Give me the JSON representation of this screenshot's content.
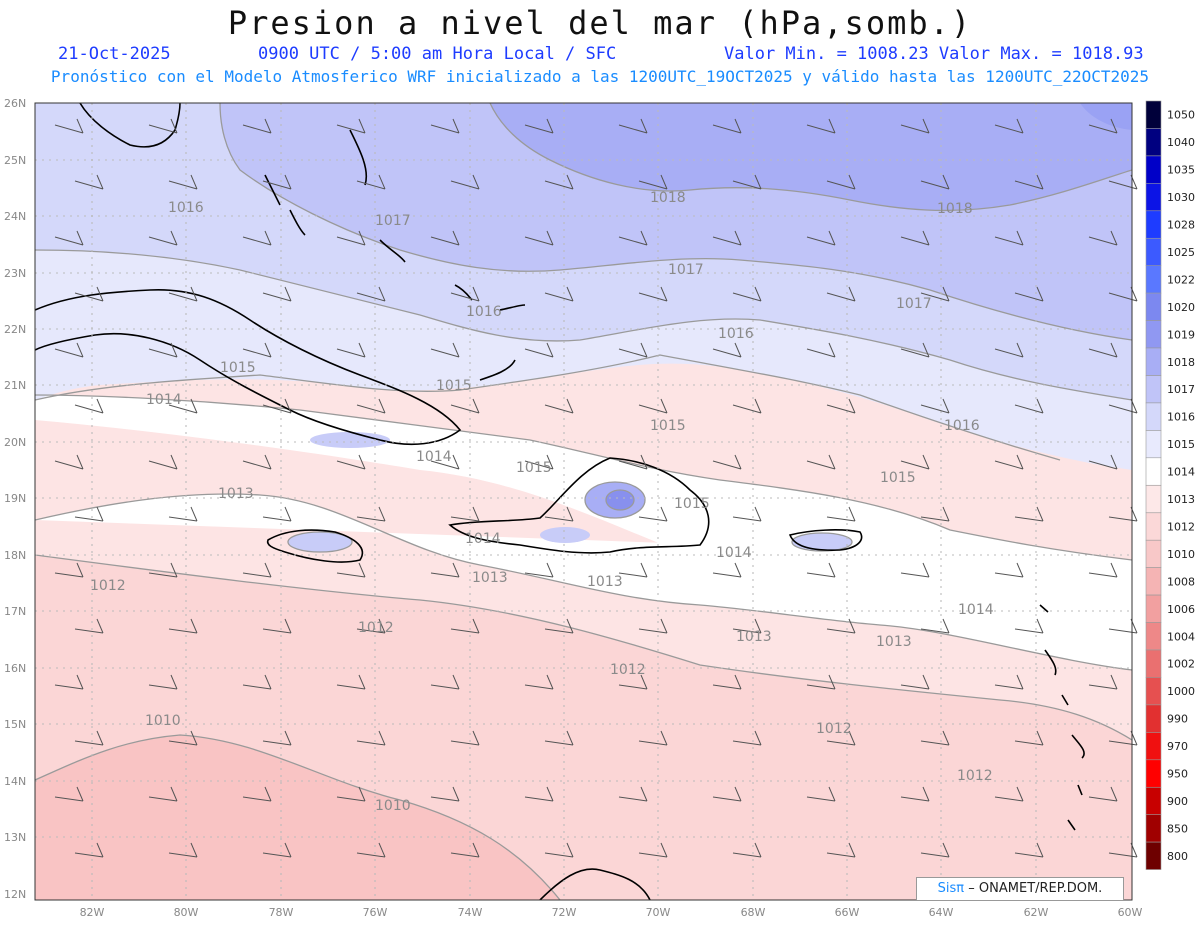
{
  "header": {
    "title": "Presion a nivel del mar (hPa,somb.)",
    "date": "21-Oct-2025",
    "time": "0900 UTC / 5:00 am Hora Local / SFC",
    "minmax": "Valor Min. = 1008.23  Valor Max. = 1018.93",
    "model": "Pronóstico con el Modelo Atmosferico WRF inicializado a las 1200UTC_19OCT2025 y válido hasta las  1200UTC_22OCT2025"
  },
  "credit": {
    "brand": "Sisπ",
    "rest": "– ONAMET/REP.DOM."
  },
  "map": {
    "lat_ticks": [
      "26N",
      "25N",
      "24N",
      "23N",
      "22N",
      "21N",
      "20N",
      "19N",
      "18N",
      "17N",
      "16N",
      "15N",
      "14N",
      "13N",
      "12N"
    ],
    "lon_ticks": [
      "82W",
      "80W",
      "78W",
      "76W",
      "74W",
      "72W",
      "70W",
      "68W",
      "66W",
      "64W",
      "62W",
      "60W"
    ],
    "contour_labels": [
      "1016",
      "1017",
      "1018",
      "1018",
      "1017",
      "1017",
      "1016",
      "1016",
      "1015",
      "1014",
      "1015",
      "1014",
      "1015",
      "1015",
      "1016",
      "1015",
      "1013",
      "1015",
      "1014",
      "1013",
      "1013",
      "1014",
      "1014",
      "1012",
      "1012",
      "1013",
      "1012",
      "1013",
      "1010",
      "1012",
      "1010",
      "1012"
    ]
  },
  "colorbar": {
    "labels": [
      "1050",
      "1040",
      "1035",
      "1030",
      "1028",
      "1025",
      "1022",
      "1020",
      "1019",
      "1018",
      "1017",
      "1016",
      "1015",
      "1014",
      "1013",
      "1012",
      "1010",
      "1008",
      "1006",
      "1004",
      "1002",
      "1000",
      "990",
      "970",
      "950",
      "900",
      "850",
      "800"
    ],
    "colors": [
      "#00003a",
      "#000080",
      "#0000c8",
      "#0c14e6",
      "#1e3cff",
      "#3c5aff",
      "#5a78ff",
      "#7c88f0",
      "#9098f2",
      "#a8aef5",
      "#c0c4f8",
      "#d4d8fa",
      "#e8eafd",
      "#ffffff",
      "#fde8e8",
      "#fbd8d8",
      "#f8c8c8",
      "#f5b4b4",
      "#f2a0a0",
      "#ee8888",
      "#ea7070",
      "#e65050",
      "#e23030",
      "#f01010",
      "#ff0000",
      "#c80000",
      "#a00000",
      "#6e0000"
    ]
  }
}
